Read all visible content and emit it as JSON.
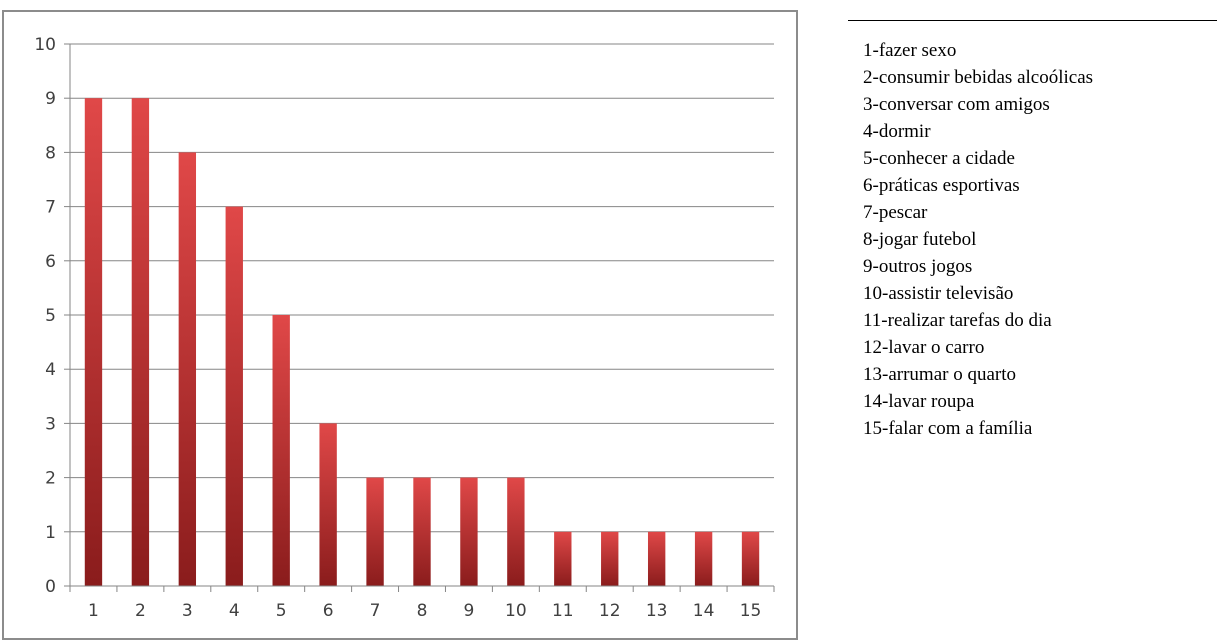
{
  "chart_data": {
    "type": "bar",
    "title": "",
    "xlabel": "",
    "ylabel": "",
    "categories": [
      "1",
      "2",
      "3",
      "4",
      "5",
      "6",
      "7",
      "8",
      "9",
      "10",
      "11",
      "12",
      "13",
      "14",
      "15"
    ],
    "values": [
      9,
      9,
      8,
      7,
      5,
      3,
      2,
      2,
      2,
      2,
      1,
      1,
      1,
      1,
      1
    ],
    "ylim": [
      0,
      10
    ],
    "yticks": [
      0,
      1,
      2,
      3,
      4,
      5,
      6,
      7,
      8,
      9,
      10
    ],
    "grid": true,
    "legend_position": "right",
    "bar_color_top": "#e04848",
    "bar_color_bottom": "#8a1c1c",
    "grid_color": "#868686",
    "axis_color": "#868686"
  },
  "legend": {
    "items": [
      "1-fazer sexo",
      "2-consumir bebidas alcoólicas",
      "3-conversar com amigos",
      "4-dormir",
      "5-conhecer a cidade",
      "6-práticas esportivas",
      "7-pescar",
      "8-jogar futebol",
      "9-outros jogos",
      "10-assistir televisão",
      "11-realizar tarefas do dia",
      "12-lavar o carro",
      "13-arrumar o quarto",
      "14-lavar roupa",
      "15-falar com a família"
    ]
  }
}
